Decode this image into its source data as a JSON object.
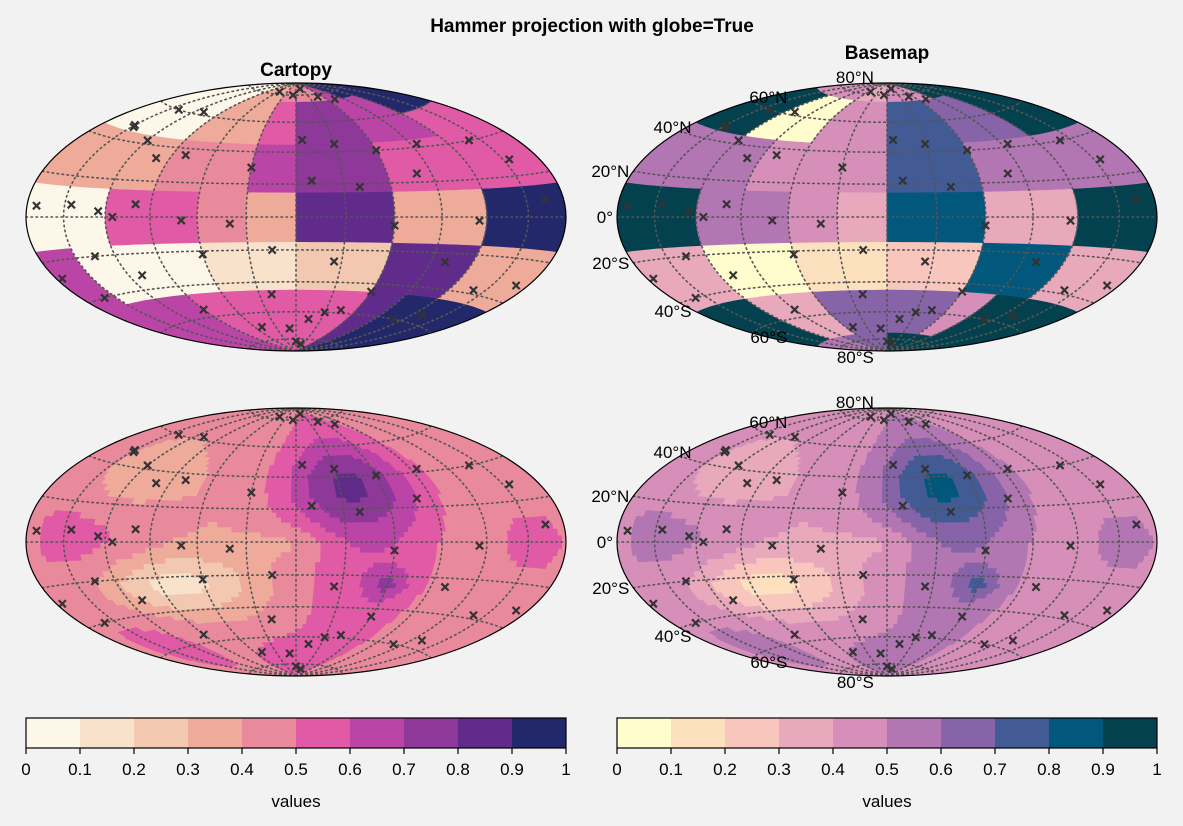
{
  "figure": {
    "suptitle": "Hammer projection with globe=True",
    "titles": {
      "cartopy": "Cartopy",
      "basemap": "Basemap"
    }
  },
  "colors": {
    "cartopy_cmap": [
      "#fdf7e9",
      "#f8e2cc",
      "#f2c8b0",
      "#eeab9a",
      "#e98a9c",
      "#e05aa6",
      "#bb45a6",
      "#8e3899",
      "#612b8b",
      "#23286b"
    ],
    "basemap_cmap": [
      "#fffdcd",
      "#fde1bf",
      "#f8c6bc",
      "#e9a9bc",
      "#d68fb9",
      "#b276b2",
      "#8763a8",
      "#435b95",
      "#02577d",
      "#03414f"
    ],
    "marker": "#333333",
    "gridline": "#555555"
  },
  "chart_data": [
    {
      "type": "heatmap",
      "panel": "Cartopy (pcolor)",
      "title": "Cartopy",
      "lon_edges": [
        -180,
        -150,
        -120,
        -90,
        -60,
        -30,
        0,
        30,
        60,
        90,
        120,
        150,
        180
      ],
      "lat_edges": [
        -90,
        -75,
        -60,
        -45,
        -30,
        -15,
        0,
        15,
        30,
        45,
        60,
        75,
        90
      ],
      "values": [
        [
          0.62,
          0.62,
          0.62,
          0.58,
          0.58,
          0.55,
          0.55,
          0.52,
          0.85,
          0.9,
          0.92,
          0.95
        ],
        [
          0.63,
          0.62,
          0.62,
          0.58,
          0.58,
          0.55,
          0.55,
          0.52,
          0.85,
          0.9,
          0.92,
          0.95
        ],
        [
          0.63,
          0.62,
          0.62,
          0.58,
          0.58,
          0.55,
          0.55,
          0.52,
          0.85,
          0.9,
          0.92,
          0.95
        ],
        [
          0.62,
          0.08,
          0.08,
          0.08,
          0.12,
          0.15,
          0.25,
          0.25,
          0.82,
          0.82,
          0.35,
          0.35
        ],
        [
          0.62,
          0.08,
          0.08,
          0.08,
          0.12,
          0.15,
          0.25,
          0.25,
          0.82,
          0.82,
          0.35,
          0.35
        ],
        [
          0.05,
          0.05,
          0.55,
          0.55,
          0.45,
          0.35,
          0.85,
          0.85,
          0.35,
          0.35,
          0.95,
          0.95
        ],
        [
          0.05,
          0.05,
          0.55,
          0.55,
          0.45,
          0.35,
          0.85,
          0.85,
          0.35,
          0.35,
          0.95,
          0.95
        ],
        [
          0.32,
          0.32,
          0.32,
          0.42,
          0.42,
          0.65,
          0.75,
          0.75,
          0.52,
          0.52,
          0.55,
          0.55
        ],
        [
          0.32,
          0.32,
          0.32,
          0.42,
          0.42,
          0.65,
          0.75,
          0.75,
          0.52,
          0.52,
          0.55,
          0.55
        ],
        [
          0.05,
          0.05,
          0.05,
          0.35,
          0.35,
          0.55,
          0.75,
          0.75,
          0.62,
          0.62,
          0.55,
          0.55
        ],
        [
          0.05,
          0.05,
          0.05,
          0.35,
          0.35,
          0.55,
          0.75,
          0.75,
          0.62,
          0.62,
          0.95,
          0.95
        ],
        [
          0.05,
          0.05,
          0.05,
          0.35,
          0.35,
          0.42,
          0.42,
          0.42,
          0.62,
          0.95,
          0.95,
          0.95
        ]
      ],
      "vmin": 0,
      "vmax": 1
    },
    {
      "type": "heatmap",
      "panel": "Basemap (pcolor)",
      "title": "Basemap",
      "lon_edges": [
        -180,
        -150,
        -120,
        -90,
        -60,
        -30,
        0,
        30,
        60,
        90,
        120,
        150,
        180
      ],
      "lat_edges": [
        -90,
        -75,
        -60,
        -45,
        -30,
        -15,
        0,
        15,
        30,
        45,
        60,
        75,
        90
      ],
      "values": [
        [
          0.55,
          0.55,
          0.55,
          0.62,
          0.62,
          0.62,
          0.95,
          0.95,
          0.95,
          0.95,
          0.95,
          0.95
        ],
        [
          0.95,
          0.95,
          0.35,
          0.35,
          0.62,
          0.62,
          0.62,
          0.62,
          0.42,
          0.95,
          0.95,
          0.95
        ],
        [
          0.95,
          0.95,
          0.35,
          0.35,
          0.62,
          0.62,
          0.62,
          0.62,
          0.42,
          0.95,
          0.95,
          0.95
        ],
        [
          0.35,
          0.35,
          0.05,
          0.05,
          0.15,
          0.15,
          0.25,
          0.25,
          0.85,
          0.85,
          0.35,
          0.35
        ],
        [
          0.35,
          0.35,
          0.05,
          0.05,
          0.15,
          0.15,
          0.25,
          0.25,
          0.85,
          0.85,
          0.35,
          0.35
        ],
        [
          0.95,
          0.95,
          0.55,
          0.55,
          0.42,
          0.35,
          0.85,
          0.85,
          0.35,
          0.35,
          0.95,
          0.95
        ],
        [
          0.95,
          0.95,
          0.55,
          0.55,
          0.42,
          0.35,
          0.85,
          0.85,
          0.35,
          0.35,
          0.95,
          0.95
        ],
        [
          0.55,
          0.55,
          0.55,
          0.42,
          0.42,
          0.42,
          0.75,
          0.75,
          0.55,
          0.55,
          0.55,
          0.55
        ],
        [
          0.55,
          0.55,
          0.55,
          0.42,
          0.42,
          0.42,
          0.75,
          0.75,
          0.55,
          0.55,
          0.55,
          0.55
        ],
        [
          0.95,
          0.95,
          0.08,
          0.08,
          0.42,
          0.42,
          0.75,
          0.75,
          0.62,
          0.62,
          0.95,
          0.95
        ],
        [
          0.95,
          0.95,
          0.08,
          0.08,
          0.42,
          0.42,
          0.75,
          0.75,
          0.62,
          0.62,
          0.95,
          0.95
        ],
        [
          0.45,
          0.45,
          0.45,
          0.45,
          0.35,
          0.35,
          0.45,
          0.45,
          0.45,
          0.95,
          0.95,
          0.95
        ]
      ],
      "vmin": 0,
      "vmax": 1
    },
    {
      "type": "heatmap",
      "panel": "Cartopy (contourf)",
      "title": "",
      "levels": [
        0,
        0.1,
        0.2,
        0.3,
        0.4,
        0.5,
        0.6,
        0.7,
        0.8,
        0.9,
        1
      ],
      "vmin": 0,
      "vmax": 1
    },
    {
      "type": "heatmap",
      "panel": "Basemap (contourf)",
      "title": "",
      "levels": [
        0,
        0.1,
        0.2,
        0.3,
        0.4,
        0.5,
        0.6,
        0.7,
        0.8,
        0.9,
        1
      ],
      "vmin": 0,
      "vmax": 1
    }
  ],
  "points": [
    [
      -55,
      82
    ],
    [
      -8,
      80
    ],
    [
      20,
      85
    ],
    [
      50,
      78
    ],
    [
      75,
      75
    ],
    [
      -140,
      60
    ],
    [
      -110,
      62
    ],
    [
      -150,
      48
    ],
    [
      -148,
      47
    ],
    [
      -120,
      42
    ],
    [
      -100,
      33
    ],
    [
      5,
      48
    ],
    [
      30,
      45
    ],
    [
      60,
      40
    ],
    [
      95,
      42
    ],
    [
      140,
      40
    ],
    [
      155,
      28
    ],
    [
      -80,
      36
    ],
    [
      -30,
      30
    ],
    [
      10,
      22
    ],
    [
      40,
      18
    ],
    [
      80,
      25
    ],
    [
      -172,
      5
    ],
    [
      -145,
      6
    ],
    [
      -125,
      3
    ],
    [
      -115,
      0
    ],
    [
      -100,
      7
    ],
    [
      -70,
      -2
    ],
    [
      -40,
      -4
    ],
    [
      60,
      -5
    ],
    [
      115,
      -2
    ],
    [
      165,
      8
    ],
    [
      -175,
      -28
    ],
    [
      -160,
      -40
    ],
    [
      -135,
      -20
    ],
    [
      -110,
      -32
    ],
    [
      -60,
      -22
    ],
    [
      -15,
      -20
    ],
    [
      25,
      -27
    ],
    [
      60,
      -45
    ],
    [
      100,
      -25
    ],
    [
      140,
      -38
    ],
    [
      170,
      -32
    ],
    [
      -90,
      -55
    ],
    [
      -50,
      -70
    ],
    [
      -10,
      -72
    ],
    [
      15,
      -65
    ],
    [
      45,
      -58
    ],
    [
      -20,
      -48
    ],
    [
      0,
      -82
    ],
    [
      20,
      -84
    ],
    [
      30,
      -60
    ],
    [
      110,
      -60
    ],
    [
      130,
      -55
    ]
  ],
  "gridlines": {
    "lons": [
      -150,
      -120,
      -90,
      -60,
      -30,
      0,
      30,
      60,
      90,
      120,
      150
    ],
    "lats": [
      -80,
      -60,
      -40,
      -20,
      0,
      20,
      40,
      60,
      80
    ]
  },
  "lat_labels": [
    {
      "lat": 80,
      "text": "80°N"
    },
    {
      "lat": 60,
      "text": "60°N"
    },
    {
      "lat": 40,
      "text": "40°N"
    },
    {
      "lat": 20,
      "text": "20°N"
    },
    {
      "lat": 0,
      "text": "0°"
    },
    {
      "lat": -20,
      "text": "20°S"
    },
    {
      "lat": -40,
      "text": "40°S"
    },
    {
      "lat": -60,
      "text": "60°S"
    },
    {
      "lat": -80,
      "text": "80°S"
    }
  ],
  "colorbars": [
    {
      "label": "values",
      "ticks": [
        "0",
        "0.1",
        "0.2",
        "0.3",
        "0.4",
        "0.5",
        "0.6",
        "0.7",
        "0.8",
        "0.9",
        "1"
      ],
      "cmap": "cartopy_cmap"
    },
    {
      "label": "values",
      "ticks": [
        "0",
        "0.1",
        "0.2",
        "0.3",
        "0.4",
        "0.5",
        "0.6",
        "0.7",
        "0.8",
        "0.9",
        "1"
      ],
      "cmap": "basemap_cmap"
    }
  ]
}
